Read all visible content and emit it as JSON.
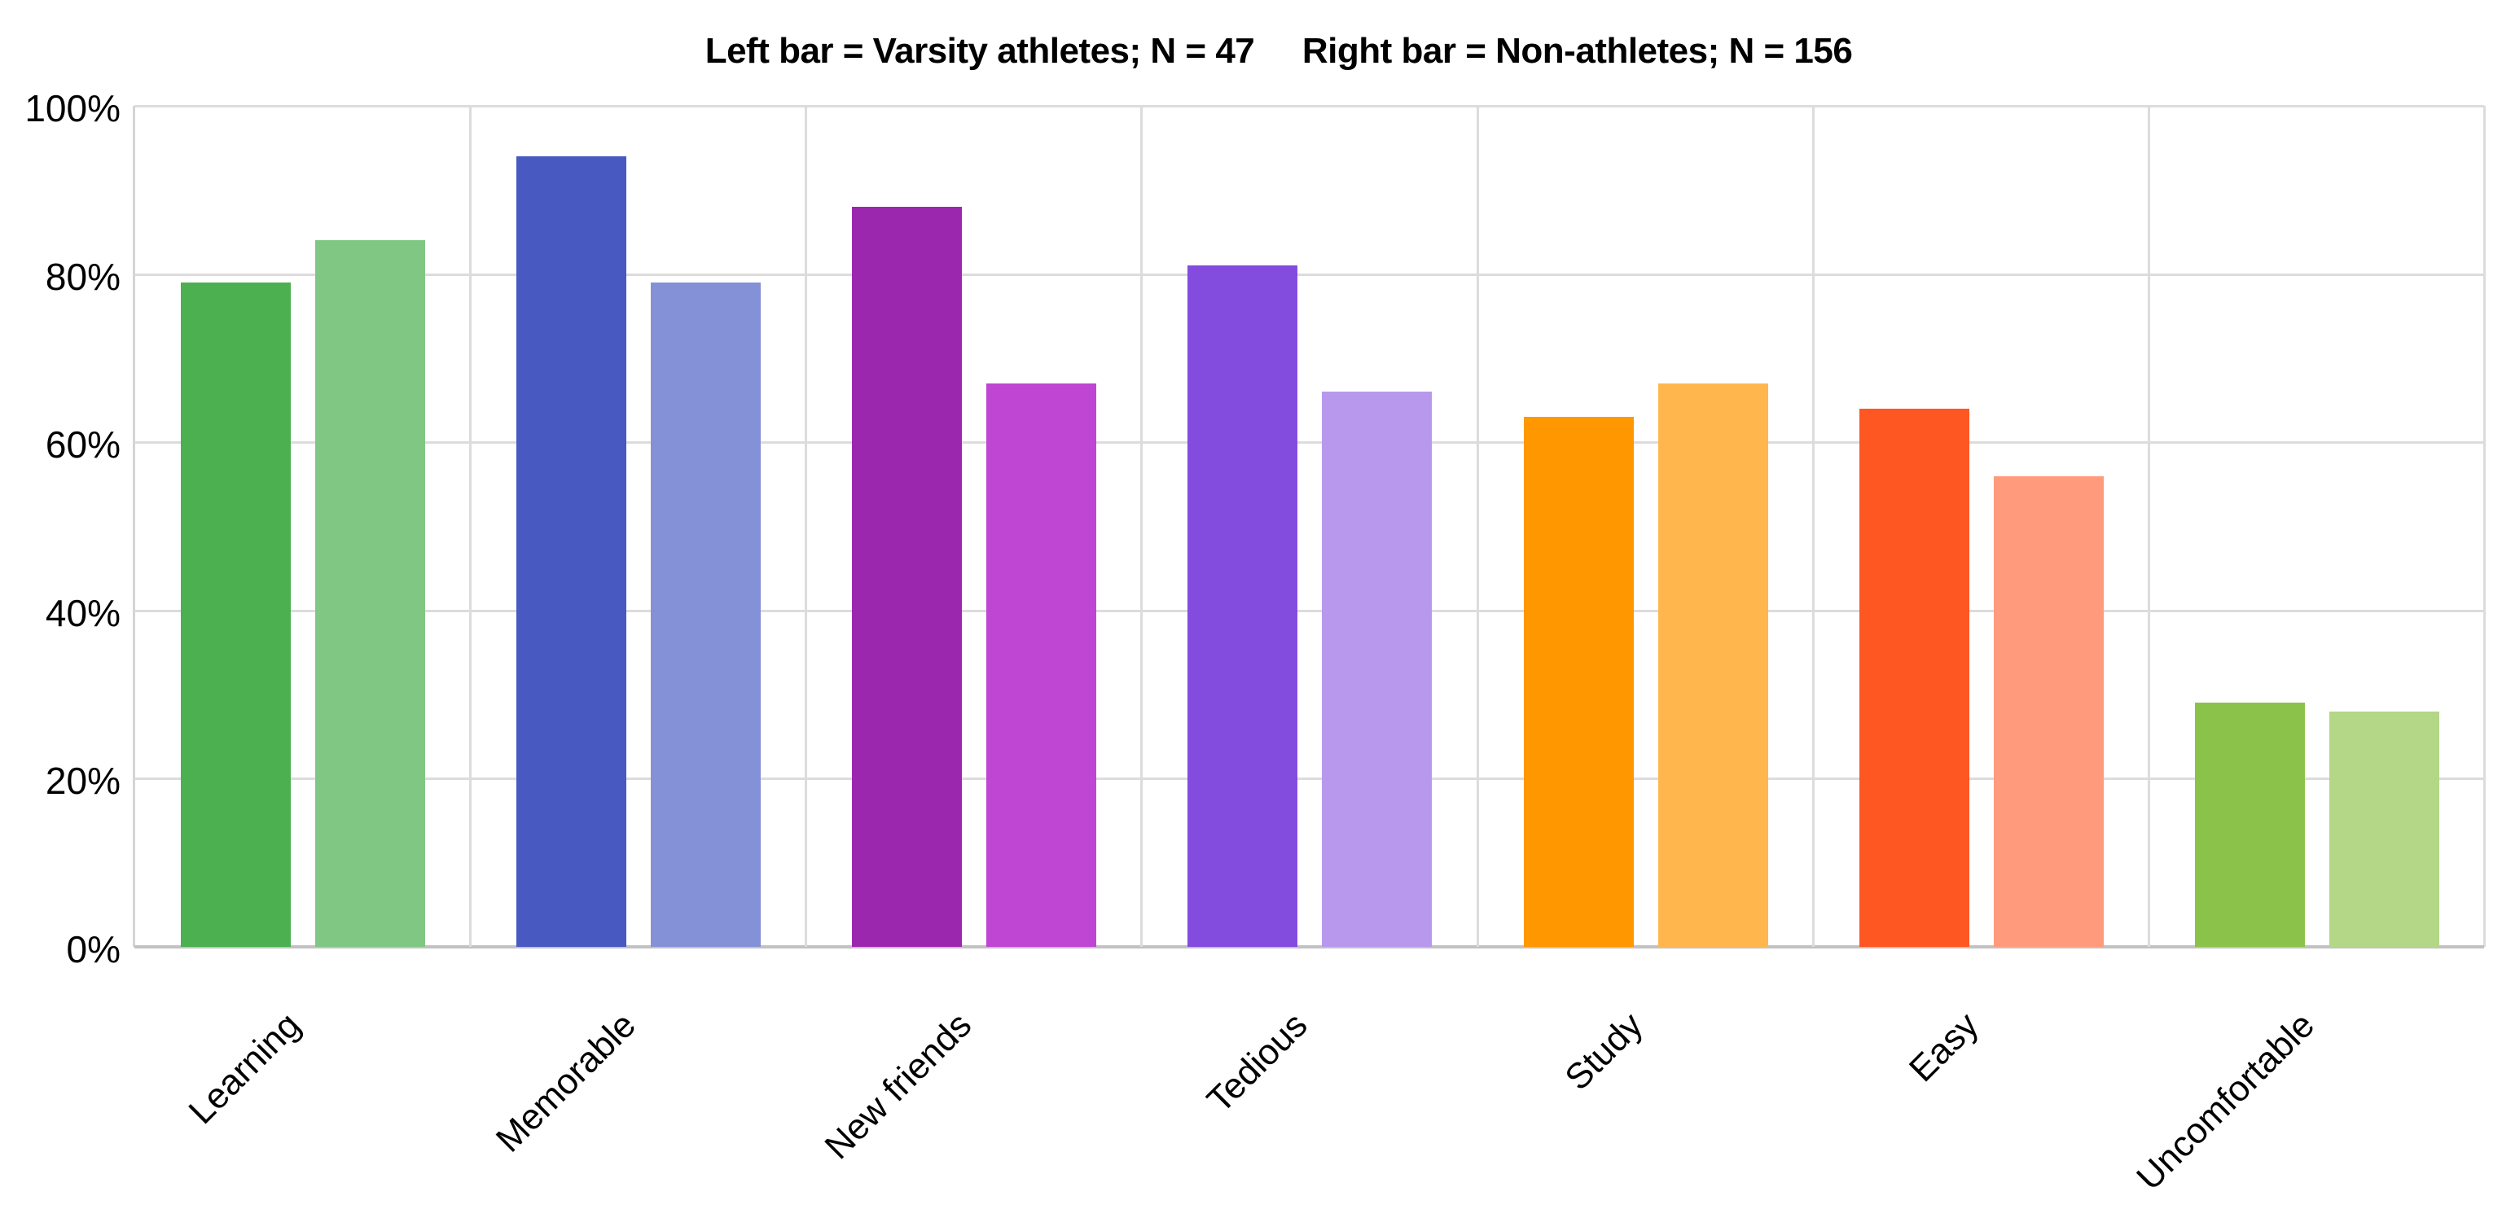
{
  "title": "Left bar = Varsity athletes; N = 47     Right bar = Non-athletes; N = 156",
  "chart_data": {
    "type": "bar",
    "title": "Left bar = Varsity athletes; N = 47     Right bar = Non-athletes; N = 156",
    "xlabel": "",
    "ylabel": "",
    "ylim": [
      0,
      100
    ],
    "yticks": [
      "0%",
      "20%",
      "40%",
      "60%",
      "80%",
      "100%"
    ],
    "grid": true,
    "legend": "none (encoded in title)",
    "categories": [
      "Learning",
      "Memorable",
      "New friends",
      "Tedious",
      "Study",
      "Easy",
      "Uncomfortable"
    ],
    "series": [
      {
        "name": "Varsity athletes (N = 47)",
        "position": "left",
        "values": [
          79,
          94,
          88,
          81,
          63,
          64,
          29
        ]
      },
      {
        "name": "Non-athletes (N = 156)",
        "position": "right",
        "values": [
          84,
          79,
          67,
          66,
          67,
          56,
          28
        ]
      }
    ],
    "colors": {
      "left": [
        "#4CAF50",
        "#4859C2",
        "#9C27AF",
        "#834CDF",
        "#FF9800",
        "#FF5722",
        "#8BC34A"
      ],
      "right": [
        "#81C784",
        "#8591D7",
        "#BF45D3",
        "#B898ED",
        "#FFB74D",
        "#FF9A7C",
        "#B3D787"
      ]
    }
  }
}
